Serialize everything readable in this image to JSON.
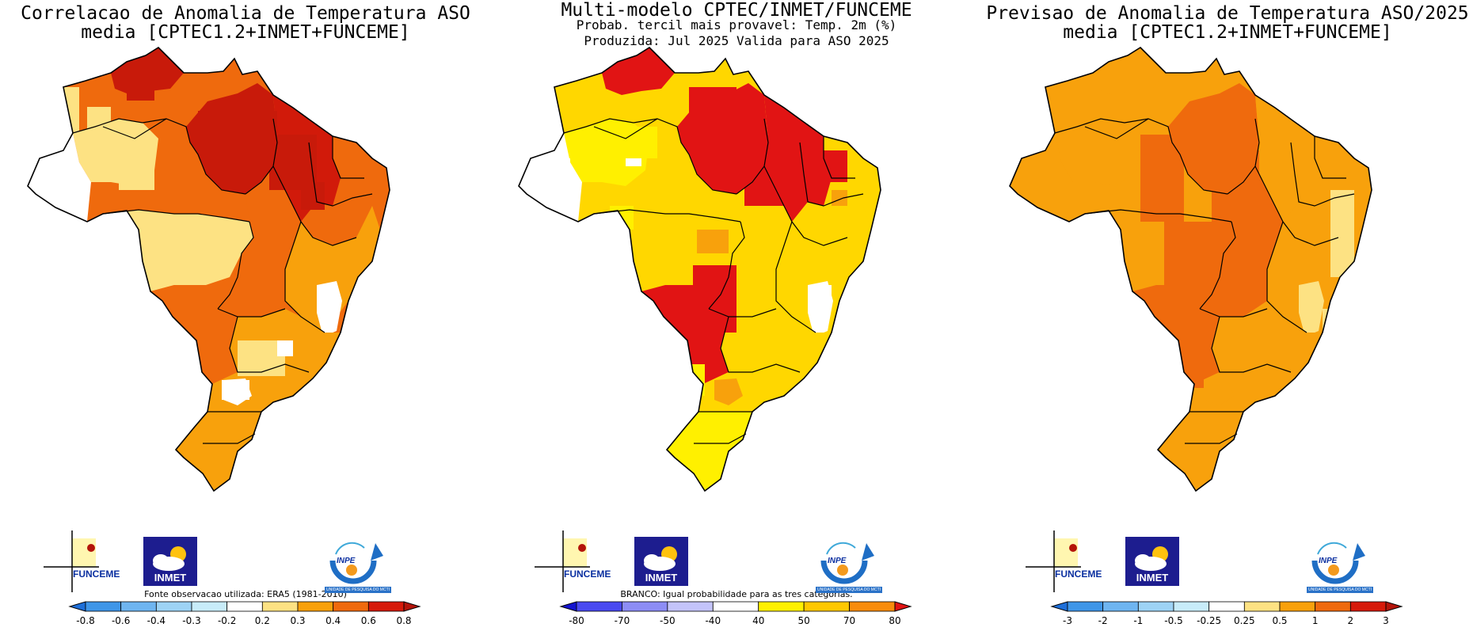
{
  "palette": {
    "white": "#ffffff",
    "pale_yellow": "#fde283",
    "yellow": "#ffd700",
    "bright_yellow": "#fff000",
    "orange": "#f8a10c",
    "dark_orange": "#ef6a0d",
    "red": "#e11414",
    "dark_red": "#c81a0a",
    "light_blue": "#a5d8f5",
    "blue": "#3b9be3"
  },
  "panels": [
    {
      "id": "correlation",
      "title_lines": [
        "Correlacao de Anomalia de Temperatura ASO",
        "media [CPTEC1.2+INMET+FUNCEME]"
      ],
      "note": "Fonte observacao utilizada: ERA5 (1981-2010)",
      "colorbar": {
        "labels": [
          "-0.8",
          "-0.6",
          "-0.4",
          "-0.3",
          "-0.2",
          "0.2",
          "0.3",
          "0.4",
          "0.6",
          "0.8"
        ],
        "colors": [
          "#1e6fd9",
          "#3f96e8",
          "#6fb5f0",
          "#9ed3f5",
          "#c8ecf9",
          "#ffffff",
          "#fde283",
          "#f8a10c",
          "#ef6a0d",
          "#d61a0a",
          "#b3140a"
        ]
      },
      "regions": [
        {
          "name": "amazonas-north",
          "color": "#ef6a0d"
        },
        {
          "name": "roraima",
          "color": "#c81a0a"
        },
        {
          "name": "west-amazonas",
          "color": "#fde283"
        },
        {
          "name": "acre",
          "color": "#ffffff"
        },
        {
          "name": "para",
          "color": "#c81a0a"
        },
        {
          "name": "maranhao",
          "color": "#d11a0a"
        },
        {
          "name": "central",
          "color": "#ef6a0d"
        },
        {
          "name": "rondonia",
          "color": "#fde283"
        },
        {
          "name": "mato-grosso-south",
          "color": "#ef6a0d"
        },
        {
          "name": "bahia",
          "color": "#f8a10c"
        },
        {
          "name": "bahia-coast",
          "color": "#ffffff"
        },
        {
          "name": "southeast",
          "color": "#f8a10c"
        },
        {
          "name": "parana",
          "color": "#ffffff"
        },
        {
          "name": "south",
          "color": "#f8a10c"
        }
      ],
      "logos": {
        "funceme": "FUNCEME",
        "inmet": "INMET",
        "inpe": "INPE",
        "inpe_sub": "UNIDADE DE PESQUISA DO MCTI"
      }
    },
    {
      "id": "probability",
      "title_lines": [
        "Multi-modelo CPTEC/INMET/FUNCEME",
        "Probab. tercil mais provavel: Temp. 2m (%)",
        "Produzida: Jul 2025  Valida para ASO 2025"
      ],
      "note": "BRANCO: Igual probabilidade para as tres categorias.",
      "colorbar": {
        "labels": [
          "-80",
          "-70",
          "-50",
          "-40",
          "40",
          "50",
          "70",
          "80"
        ],
        "colors": [
          "#1414d0",
          "#4a4af0",
          "#8d8df5",
          "#c4c4fa",
          "#ffffff",
          "#fff000",
          "#ffc800",
          "#f88c0c",
          "#e11414"
        ]
      },
      "regions": [
        {
          "name": "amazonas-north",
          "color": "#ffd700"
        },
        {
          "name": "roraima",
          "color": "#e11414"
        },
        {
          "name": "west-amazonas",
          "color": "#fff000"
        },
        {
          "name": "acre",
          "color": "#ffffff"
        },
        {
          "name": "para",
          "color": "#e11414"
        },
        {
          "name": "maranhao",
          "color": "#e11414"
        },
        {
          "name": "central",
          "color": "#ffd700"
        },
        {
          "name": "rondonia",
          "color": "#ffd700"
        },
        {
          "name": "mato-grosso-south",
          "color": "#e11414"
        },
        {
          "name": "bahia",
          "color": "#ffd700"
        },
        {
          "name": "bahia-coast",
          "color": "#ffffff"
        },
        {
          "name": "southeast",
          "color": "#ffd700"
        },
        {
          "name": "parana",
          "color": "#f8a10c"
        },
        {
          "name": "south",
          "color": "#fff000"
        }
      ],
      "logos": {
        "funceme": "FUNCEME",
        "inmet": "INMET",
        "inpe": "INPE",
        "inpe_sub": "UNIDADE DE PESQUISA DO MCTI"
      }
    },
    {
      "id": "forecast",
      "title_lines": [
        "Previsao de Anomalia de Temperatura ASO/2025",
        "media [CPTEC1.2+INMET+FUNCEME]"
      ],
      "note": "",
      "colorbar": {
        "labels": [
          "-3",
          "-2",
          "-1",
          "-0.5",
          "-0.25",
          "0.25",
          "0.5",
          "1",
          "2",
          "3"
        ],
        "colors": [
          "#1e6fd9",
          "#3f96e8",
          "#6fb5f0",
          "#9ed3f5",
          "#c8ecf9",
          "#ffffff",
          "#fde283",
          "#f8a10c",
          "#ef6a0d",
          "#d61a0a",
          "#b3140a"
        ]
      },
      "regions": [
        {
          "name": "amazonas-north",
          "color": "#f8a10c"
        },
        {
          "name": "roraima",
          "color": "#f8a10c"
        },
        {
          "name": "west-amazonas",
          "color": "#f8a10c"
        },
        {
          "name": "acre",
          "color": "#f8a10c"
        },
        {
          "name": "para",
          "color": "#ef6a0d"
        },
        {
          "name": "maranhao",
          "color": "#f8a10c"
        },
        {
          "name": "central",
          "color": "#ef6a0d"
        },
        {
          "name": "rondonia",
          "color": "#f8a10c"
        },
        {
          "name": "mato-grosso-south",
          "color": "#ef6a0d"
        },
        {
          "name": "bahia",
          "color": "#f8a10c"
        },
        {
          "name": "bahia-coast",
          "color": "#fde283"
        },
        {
          "name": "southeast",
          "color": "#f8a10c"
        },
        {
          "name": "parana",
          "color": "#f8a10c"
        },
        {
          "name": "south",
          "color": "#f8a10c"
        }
      ],
      "logos": {
        "funceme": "FUNCEME",
        "inmet": "INMET",
        "inpe": "INPE",
        "inpe_sub": "UNIDADE DE PESQUISA DO MCTI"
      }
    }
  ]
}
